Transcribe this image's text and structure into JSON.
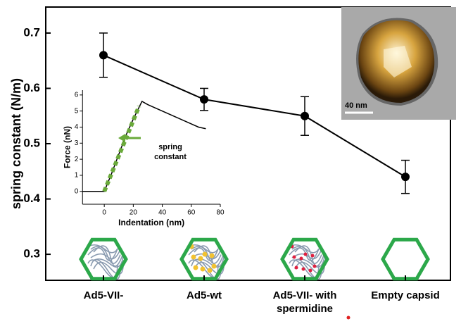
{
  "chart_data": [
    {
      "type": "errorline",
      "ylabel": "spring constant (N/m)",
      "categories": [
        "Ad5-VII-",
        "Ad5-wt",
        "Ad5-VII- with spermidine",
        "Empty capsid"
      ],
      "values": [
        0.66,
        0.58,
        0.55,
        0.44
      ],
      "errors": [
        0.04,
        0.02,
        0.035,
        0.03
      ],
      "color": "#000000",
      "ylim": [
        0.253,
        0.747
      ],
      "yticks": [
        0.3,
        0.4,
        0.5,
        0.6,
        0.7
      ],
      "scale_bar_label": "40 nm"
    },
    {
      "type": "line",
      "xlabel": "Indentation (nm)",
      "ylabel": "Force (nN)",
      "xlim": [
        -15,
        80
      ],
      "ylim": [
        -0.8,
        6.3
      ],
      "xticks": [
        0,
        20,
        40,
        60,
        80
      ],
      "yticks": [
        0,
        1,
        2,
        3,
        4,
        5,
        6
      ],
      "series": [
        {
          "color": "#000000",
          "x": [
            -15,
            0,
            5,
            10,
            15,
            20,
            26,
            30,
            40,
            50,
            60,
            65,
            70
          ],
          "values": [
            0,
            0,
            1.1,
            2.3,
            3.5,
            4.5,
            5.6,
            5.4,
            5.0,
            4.6,
            4.2,
            4.0,
            3.9
          ]
        },
        {
          "color": "#6aaa3a",
          "x": [
            0,
            24
          ],
          "values": [
            0,
            5.3
          ]
        }
      ],
      "annotation": "spring constant"
    }
  ]
}
